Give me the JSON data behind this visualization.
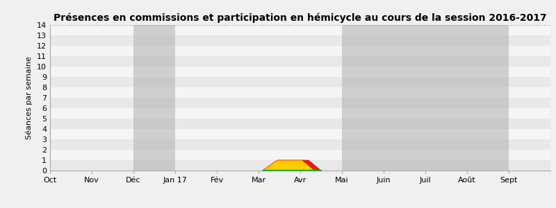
{
  "title": "Présences en commissions et participation en hémicycle au cours de la session 2016-2017",
  "ylabel": "Séances par semaine",
  "xlim": [
    0,
    12
  ],
  "ylim": [
    0,
    14
  ],
  "yticks": [
    0,
    1,
    2,
    3,
    4,
    5,
    6,
    7,
    8,
    9,
    10,
    11,
    12,
    13,
    14
  ],
  "xtick_positions": [
    0,
    1,
    2,
    3,
    4,
    5,
    6,
    7,
    8,
    9,
    10,
    11
  ],
  "xtick_labels": [
    "Oct",
    "Nov",
    "Déc",
    "Jan 17",
    "Fév",
    "Mar",
    "Avr",
    "Mai",
    "Juin",
    "Juil",
    "Août",
    "Sept"
  ],
  "bg_color": "#f0f0f0",
  "stripe_even": "#e8e8e8",
  "stripe_odd": "#f5f5f5",
  "gray_bands": [
    [
      2,
      3
    ],
    [
      7,
      8
    ],
    [
      8,
      9
    ],
    [
      9,
      10
    ],
    [
      10,
      11
    ]
  ],
  "gray_band_color": "#b0b0b0",
  "gray_band_alpha": 0.55,
  "title_fontsize": 10,
  "ylabel_fontsize": 8,
  "tick_fontsize": 8,
  "yellow_poly": [
    [
      5.1,
      0
    ],
    [
      5.45,
      1.0
    ],
    [
      6.05,
      1.0
    ],
    [
      6.35,
      0
    ]
  ],
  "red_poly": [
    [
      6.05,
      1.0
    ],
    [
      6.35,
      0
    ],
    [
      6.5,
      0
    ],
    [
      6.2,
      1.0
    ]
  ],
  "green_bar": [
    5.1,
    6.5,
    0.06
  ],
  "yellow_color": "#ffcc00",
  "red_color": "#dd2200",
  "green_color": "#22aa22",
  "orange_outline": "#ff6600"
}
